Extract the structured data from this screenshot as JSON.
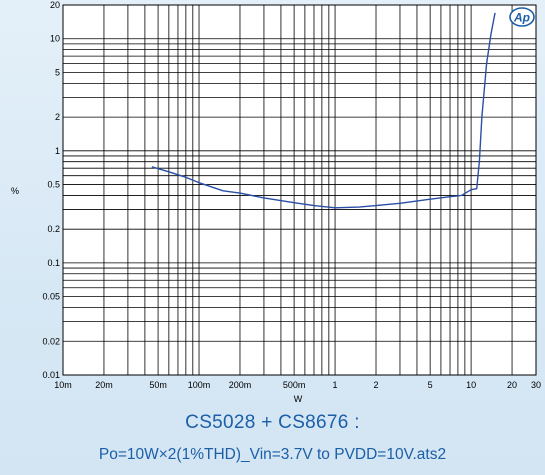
{
  "chart_data": {
    "type": "line",
    "title": "CS5028 + CS8676 :",
    "subtitle": "Po=10W×2(1%THD)_Vin=3.7V to PVDD=10V.ats2",
    "xlabel": "W",
    "ylabel": "%",
    "xscale": "log",
    "yscale": "log",
    "xlim": [
      0.01,
      30
    ],
    "ylim": [
      0.01,
      20
    ],
    "grid": true,
    "x_ticks": [
      {
        "value": 0.01,
        "label": "10m"
      },
      {
        "value": 0.02,
        "label": "20m"
      },
      {
        "value": 0.05,
        "label": "50m"
      },
      {
        "value": 0.1,
        "label": "100m"
      },
      {
        "value": 0.2,
        "label": "200m"
      },
      {
        "value": 0.5,
        "label": "500m"
      },
      {
        "value": 1,
        "label": "1"
      },
      {
        "value": 2,
        "label": "2"
      },
      {
        "value": 5,
        "label": "5"
      },
      {
        "value": 10,
        "label": "10"
      },
      {
        "value": 20,
        "label": "20"
      },
      {
        "value": 30,
        "label": "30"
      }
    ],
    "y_ticks": [
      {
        "value": 0.01,
        "label": "0.01"
      },
      {
        "value": 0.02,
        "label": "0.02"
      },
      {
        "value": 0.05,
        "label": "0.05"
      },
      {
        "value": 0.1,
        "label": "0.1"
      },
      {
        "value": 0.2,
        "label": "0.2"
      },
      {
        "value": 0.5,
        "label": "0.5"
      },
      {
        "value": 1,
        "label": "1"
      },
      {
        "value": 2,
        "label": "2"
      },
      {
        "value": 5,
        "label": "5"
      },
      {
        "value": 10,
        "label": "10"
      },
      {
        "value": 20,
        "label": "20"
      }
    ],
    "series": [
      {
        "color": "#2a4fa6",
        "x": [
          0.045,
          0.06,
          0.08,
          0.1,
          0.15,
          0.2,
          0.3,
          0.5,
          0.7,
          1.0,
          1.5,
          2.0,
          3.0,
          5.0,
          7.0,
          8.5,
          10.0,
          11.0,
          11.5,
          12.0,
          12.5,
          13.0,
          14.0,
          15.0
        ],
        "y": [
          0.72,
          0.65,
          0.58,
          0.52,
          0.44,
          0.42,
          0.38,
          0.345,
          0.325,
          0.31,
          0.315,
          0.325,
          0.34,
          0.37,
          0.39,
          0.4,
          0.45,
          0.46,
          0.8,
          2.0,
          3.5,
          6.0,
          11.0,
          17.0
        ]
      }
    ]
  },
  "logo": {
    "text": "Ap",
    "color": "#1b5fa8"
  }
}
